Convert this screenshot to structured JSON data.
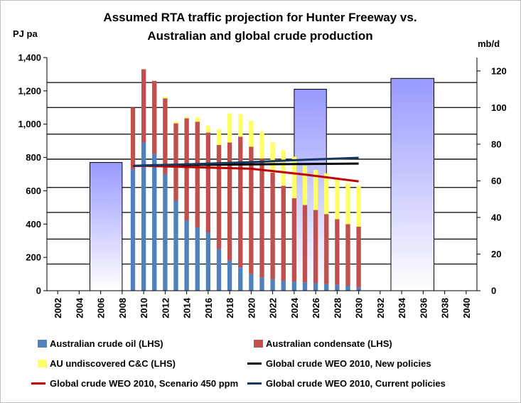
{
  "chart_data": {
    "type": "bar",
    "title_line1": "Assumed RTA traffic projection for Hunter Freeway vs.",
    "title_line2": "Australian and global crude production",
    "ylabel_left": "PJ pa",
    "ylabel_right": "mb/d",
    "ylim_left": [
      0,
      1400
    ],
    "ylim_right": [
      0,
      127.3
    ],
    "yticks_left": [
      "0",
      "200",
      "400",
      "600",
      "800",
      "1,000",
      "1,200",
      "1,400"
    ],
    "yticks_left_values": [
      0,
      200,
      400,
      600,
      800,
      1000,
      1200,
      1400
    ],
    "yticks_right": [
      "0",
      "20",
      "40",
      "60",
      "80",
      "100",
      "120"
    ],
    "yticks_right_values": [
      0,
      20,
      40,
      60,
      80,
      100,
      120
    ],
    "x_ticks": [
      "2002",
      "2004",
      "2006",
      "2008",
      "2010",
      "2012",
      "2014",
      "2016",
      "2018",
      "2020",
      "2022",
      "2024",
      "2026",
      "2028",
      "2030",
      "2032",
      "2034",
      "2036",
      "2038",
      "2040"
    ],
    "x_range": [
      2001,
      2041
    ],
    "stacked_years": [
      2009,
      2010,
      2011,
      2012,
      2013,
      2014,
      2015,
      2016,
      2017,
      2018,
      2019,
      2020,
      2021,
      2022,
      2023,
      2024,
      2025,
      2026,
      2027,
      2028,
      2029,
      2030
    ],
    "series": [
      {
        "name": "Australian crude oil (LHS)",
        "color": "#4f81bd",
        "values": [
          730,
          890,
          820,
          700,
          540,
          420,
          380,
          350,
          250,
          180,
          140,
          100,
          80,
          70,
          60,
          55,
          50,
          45,
          40,
          35,
          30,
          20
        ]
      },
      {
        "name": "Australian condensate (LHS)",
        "color": "#c0504d",
        "values": [
          370,
          440,
          440,
          455,
          465,
          615,
          635,
          600,
          625,
          710,
          785,
          765,
          715,
          640,
          570,
          500,
          465,
          440,
          420,
          395,
          370,
          365
        ]
      },
      {
        "name": "AU undiscovered C&C (LHS)",
        "color": "#ffff66",
        "values": [
          0,
          0,
          0,
          10,
          10,
          10,
          25,
          40,
          95,
          175,
          135,
          155,
          160,
          180,
          215,
          250,
          235,
          240,
          245,
          240,
          245,
          245
        ]
      }
    ],
    "lines": [
      {
        "name": "Global crude WEO 2010, New policies",
        "color": "#000000",
        "years": [
          2009,
          2010,
          2015,
          2020,
          2025,
          2030
        ],
        "values": [
          68.1,
          68.3,
          68.7,
          69.0,
          69.2,
          69.4
        ]
      },
      {
        "name": "Global crude WEO 2010, Scenario 450 ppm",
        "color": "#c00000",
        "years": [
          2009,
          2010,
          2015,
          2020,
          2025,
          2030
        ],
        "values": [
          68.1,
          68.2,
          67.4,
          66.6,
          63.4,
          59.7
        ]
      },
      {
        "name": "Global crude WEO 2010, Current policies",
        "color": "#17375e",
        "years": [
          2009,
          2010,
          2015,
          2020,
          2025,
          2030
        ],
        "values": [
          68.1,
          68.4,
          69.2,
          70.2,
          71.5,
          72.6
        ]
      }
    ],
    "traffic_projection": {
      "fill_top": "#9999ff",
      "fill_bottom": "#ffffff",
      "stroke": "#000000",
      "boxes": [
        {
          "start_year": 2005,
          "end_year": 2008,
          "value": 770
        },
        {
          "start_year": 2024,
          "end_year": 2027,
          "value": 1210
        },
        {
          "start_year": 2033,
          "end_year": 2037,
          "value": 1275
        }
      ]
    },
    "thick_gridlines_left": [
      160,
      310,
      470,
      620,
      790,
      940,
      1100,
      1250
    ],
    "legend_placement": "bottom",
    "legend": [
      {
        "label": "Australian crude oil (LHS)",
        "kind": "swatch",
        "color": "#4f81bd"
      },
      {
        "label": "Australian condensate (LHS)",
        "kind": "swatch",
        "color": "#c0504d"
      },
      {
        "label": "AU undiscovered C&C (LHS)",
        "kind": "swatch",
        "color": "#ffff66"
      },
      {
        "label": "Global crude WEO 2010, New policies",
        "kind": "line",
        "color": "#000000"
      },
      {
        "label": "Global crude WEO 2010, Scenario 450 ppm",
        "kind": "line",
        "color": "#c00000"
      },
      {
        "label": "Global crude WEO 2010, Current policies",
        "kind": "line",
        "color": "#17375e"
      }
    ]
  }
}
